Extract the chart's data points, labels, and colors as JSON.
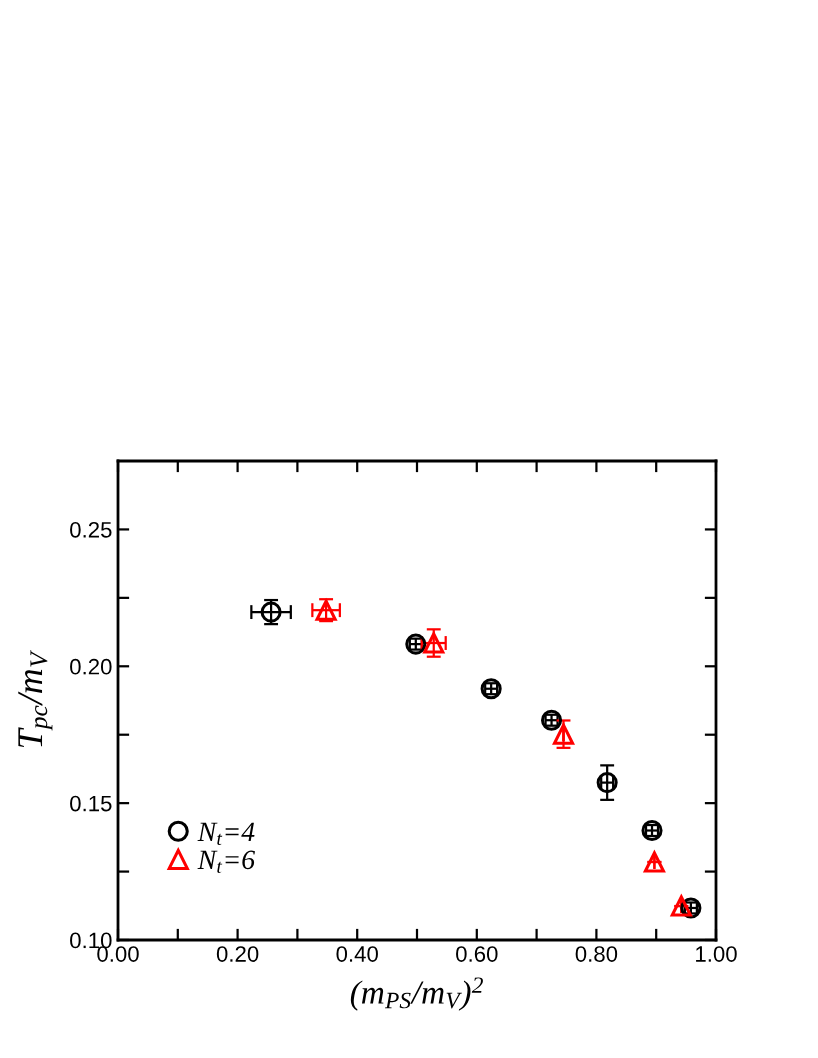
{
  "chart_data": {
    "type": "scatter",
    "xlabel": "(m$_{PS}$/m$_{V}$)$^{2}$",
    "ylabel": "T$_{pc}$/m$_{V}$",
    "xlim": [
      0,
      1
    ],
    "ylim": [
      0.1,
      0.275
    ],
    "xticks": [
      {
        "value": 0,
        "label": "0.00"
      },
      {
        "value": 0.1,
        "label": null
      },
      {
        "value": 0.2,
        "label": "0.20"
      },
      {
        "value": 0.3,
        "label": null
      },
      {
        "value": 0.4,
        "label": "0.40"
      },
      {
        "value": 0.5,
        "label": null
      },
      {
        "value": 0.6,
        "label": "0.60"
      },
      {
        "value": 0.7,
        "label": null
      },
      {
        "value": 0.8,
        "label": "0.80"
      },
      {
        "value": 0.9,
        "label": null
      },
      {
        "value": 1,
        "label": "1.00"
      }
    ],
    "yticks": [
      {
        "value": 0.1,
        "label": "0.10"
      },
      {
        "value": 0.125,
        "label": null
      },
      {
        "value": 0.15,
        "label": "0.15"
      },
      {
        "value": 0.175,
        "label": null
      },
      {
        "value": 0.2,
        "label": "0.20"
      },
      {
        "value": 0.225,
        "label": null
      },
      {
        "value": 0.25,
        "label": "0.25"
      }
    ],
    "legend": "bottom left",
    "grid": false,
    "series": [
      {
        "name": "N$_{t}$=4",
        "color": "#000000",
        "marker": "circle",
        "x": [
          0.256,
          0.498,
          0.624,
          0.725,
          0.818,
          0.893,
          0.958
        ],
        "values": [
          0.2198,
          0.2081,
          0.1918,
          0.1803,
          0.1575,
          0.14,
          0.1117
        ],
        "errors": [
          0.0044,
          0.002,
          0.002,
          0.002,
          0.0063,
          0.002,
          0.002
        ],
        "xerrors": [
          0.033,
          0.01,
          0.01,
          0.01,
          0.01,
          0.01,
          0.01
        ]
      },
      {
        "name": "N$_{t}$=6",
        "color": "#ff0000",
        "marker": "triangle",
        "x": [
          0.348,
          0.528,
          0.745,
          0.897,
          0.942
        ],
        "values": [
          0.2205,
          0.2085,
          0.1752,
          0.1285,
          0.1124
        ],
        "errors": [
          0.004,
          0.005,
          0.005,
          null,
          null
        ],
        "xerrors": [
          0.023,
          0.02,
          null,
          null,
          null
        ]
      }
    ]
  }
}
